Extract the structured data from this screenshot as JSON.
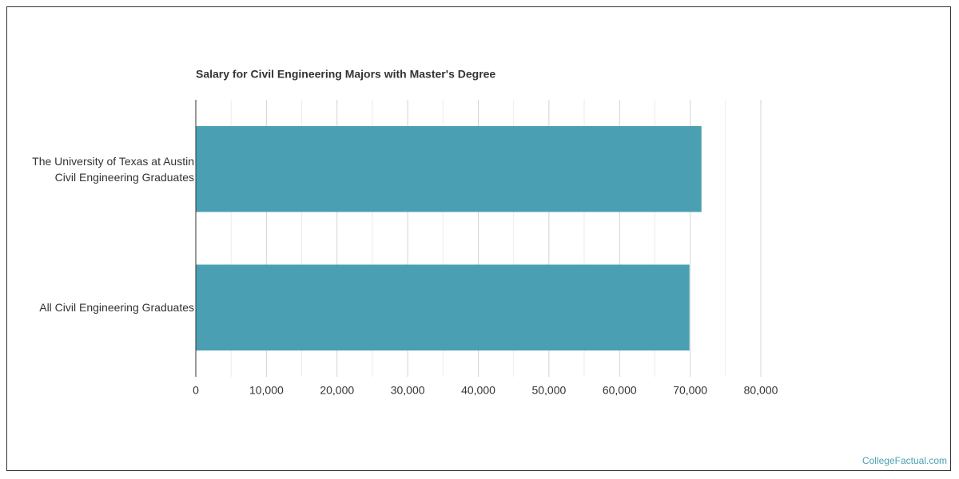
{
  "chart_data": {
    "type": "hbar",
    "title": "Salary for Civil Engineering Majors with Master's Degree",
    "categories": [
      "The University of Texas at Austin\nCivil Engineering Graduates",
      "All Civil Engineering Graduates"
    ],
    "values": [
      71600,
      69900
    ],
    "color": "#4aa0b2",
    "xlim": [
      0,
      80000
    ],
    "xticks": [
      0,
      {
        "value": 10000,
        "label": "10,000"
      },
      {
        "value": 20000,
        "label": "20,000"
      },
      {
        "value": 30000,
        "label": "30,000"
      },
      {
        "value": 40000,
        "label": "40,000"
      },
      {
        "value": 50000,
        "label": "50,000"
      },
      {
        "value": 60000,
        "label": "60,000"
      },
      {
        "value": 70000,
        "label": "70,000"
      },
      {
        "value": 80000,
        "label": "80,000"
      }
    ],
    "minor_xticks": [
      5000,
      15000,
      25000,
      35000,
      45000,
      55000,
      65000,
      75000
    ],
    "grid": true
  },
  "footer": {
    "source": "CollegeFactual.com"
  }
}
